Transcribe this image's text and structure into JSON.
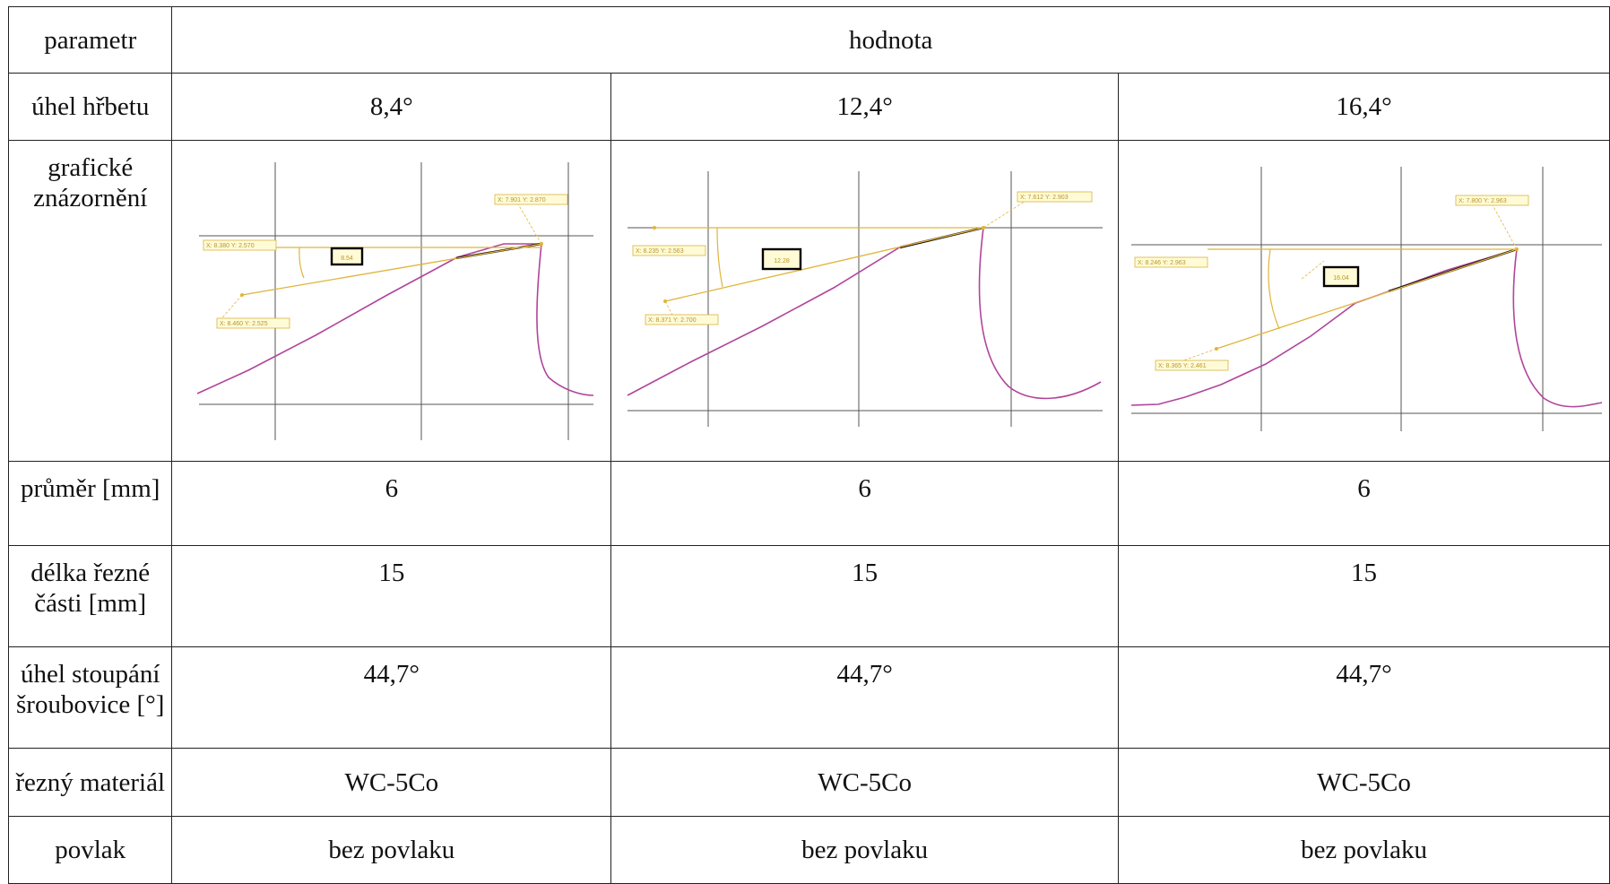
{
  "header": {
    "param_label": "parametr",
    "value_label": "hodnota"
  },
  "rows": {
    "uhel_hrbetu": {
      "label": "úhel hřbetu",
      "values": [
        "8,4°",
        "12,4°",
        "16,4°"
      ]
    },
    "graficke": {
      "label_line1": "grafické",
      "label_line2": "znázornění"
    },
    "prumer": {
      "label": "průměr [mm]",
      "values": [
        "6",
        "6",
        "6"
      ]
    },
    "delka": {
      "label_line1": "délka řezné",
      "label_line2": "části [mm]",
      "values": [
        "15",
        "15",
        "15"
      ]
    },
    "stoupani": {
      "label_line1": "úhel stoupání",
      "label_line2": "šroubovice [°]",
      "values": [
        "44,7°",
        "44,7°",
        "44,7°"
      ]
    },
    "material": {
      "label": "řezný materiál",
      "values": [
        "WC-5Co",
        "WC-5Co",
        "WC-5Co"
      ]
    },
    "povlak": {
      "label": "povlak",
      "values": [
        "bez povlaku",
        "bez povlaku",
        "bez povlaku"
      ]
    }
  },
  "diagrams": [
    {
      "angle_box": "8.54",
      "coord_top": "X: 7.901 Y: 2.870",
      "coord_left": "X: 8.380 Y: 2.570",
      "coord_bottom": "X: 8.460 Y: 2.525"
    },
    {
      "angle_box": "12.28",
      "coord_top": "X: 7.612 Y: 2.903",
      "coord_left": "X: 8.235 Y: 2.563",
      "coord_bottom": "X: 8.371 Y: 2.700"
    },
    {
      "angle_box": "16.04",
      "coord_top": "X: 7.800 Y: 2.963",
      "coord_left": "X: 8.246 Y: 2.963",
      "coord_bottom": "X: 8.365 Y: 2.461"
    }
  ],
  "colors": {
    "edge": "#b0459a",
    "dimension": "#e0b43a",
    "grid": "#555555",
    "highlight": "#000000"
  }
}
